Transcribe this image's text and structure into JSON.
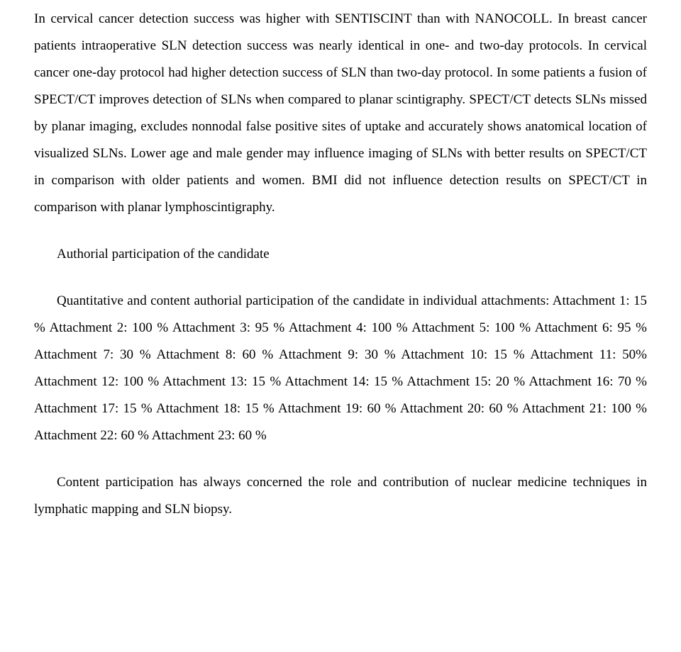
{
  "para1": "In cervical cancer detection success was higher with SENTISCINT than with NANOCOLL. In breast cancer patients intraoperative SLN detection success was nearly identical in one- and two-day protocols. In cervical cancer one-day protocol had higher detection success of SLN than two-day protocol. In some patients a fusion of SPECT/CT improves detection of SLNs when compared to planar scintigraphy. SPECT/CT detects SLNs missed by planar imaging, excludes nonnodal false positive sites of uptake and accurately shows anatomical location of visualized SLNs. Lower age and male gender may influence imaging of SLNs with better results on SPECT/CT in comparison with older patients and women. BMI did not influence detection results on SPECT/CT in comparison with planar lymphoscintigraphy.",
  "heading": "Authorial participation of the candidate",
  "para2": "Quantitative and content authorial participation of the candidate in individual attachments: Attachment 1: 15 % Attachment 2: 100 % Attachment 3: 95 % Attachment 4: 100 % Attachment 5: 100 % Attachment 6: 95 % Attachment 7: 30 % Attachment 8: 60 % Attachment  9: 30 % Attachment 10: 15 % Attachment 11: 50% Attachment 12: 100 % Attachment 13: 15 % Attachment 14: 15 % Attachment 15: 20 % Attachment 16: 70 % Attachment 17: 15 % Attachment 18: 15 % Attachment 19: 60 % Attachment 20: 60 % Attachment 21: 100 % Attachment 22:  60 % Attachment 23:  60 %",
  "para3": "Content participation has always concerned the role and contribution of nuclear medicine techniques in lymphatic mapping and SLN biopsy."
}
